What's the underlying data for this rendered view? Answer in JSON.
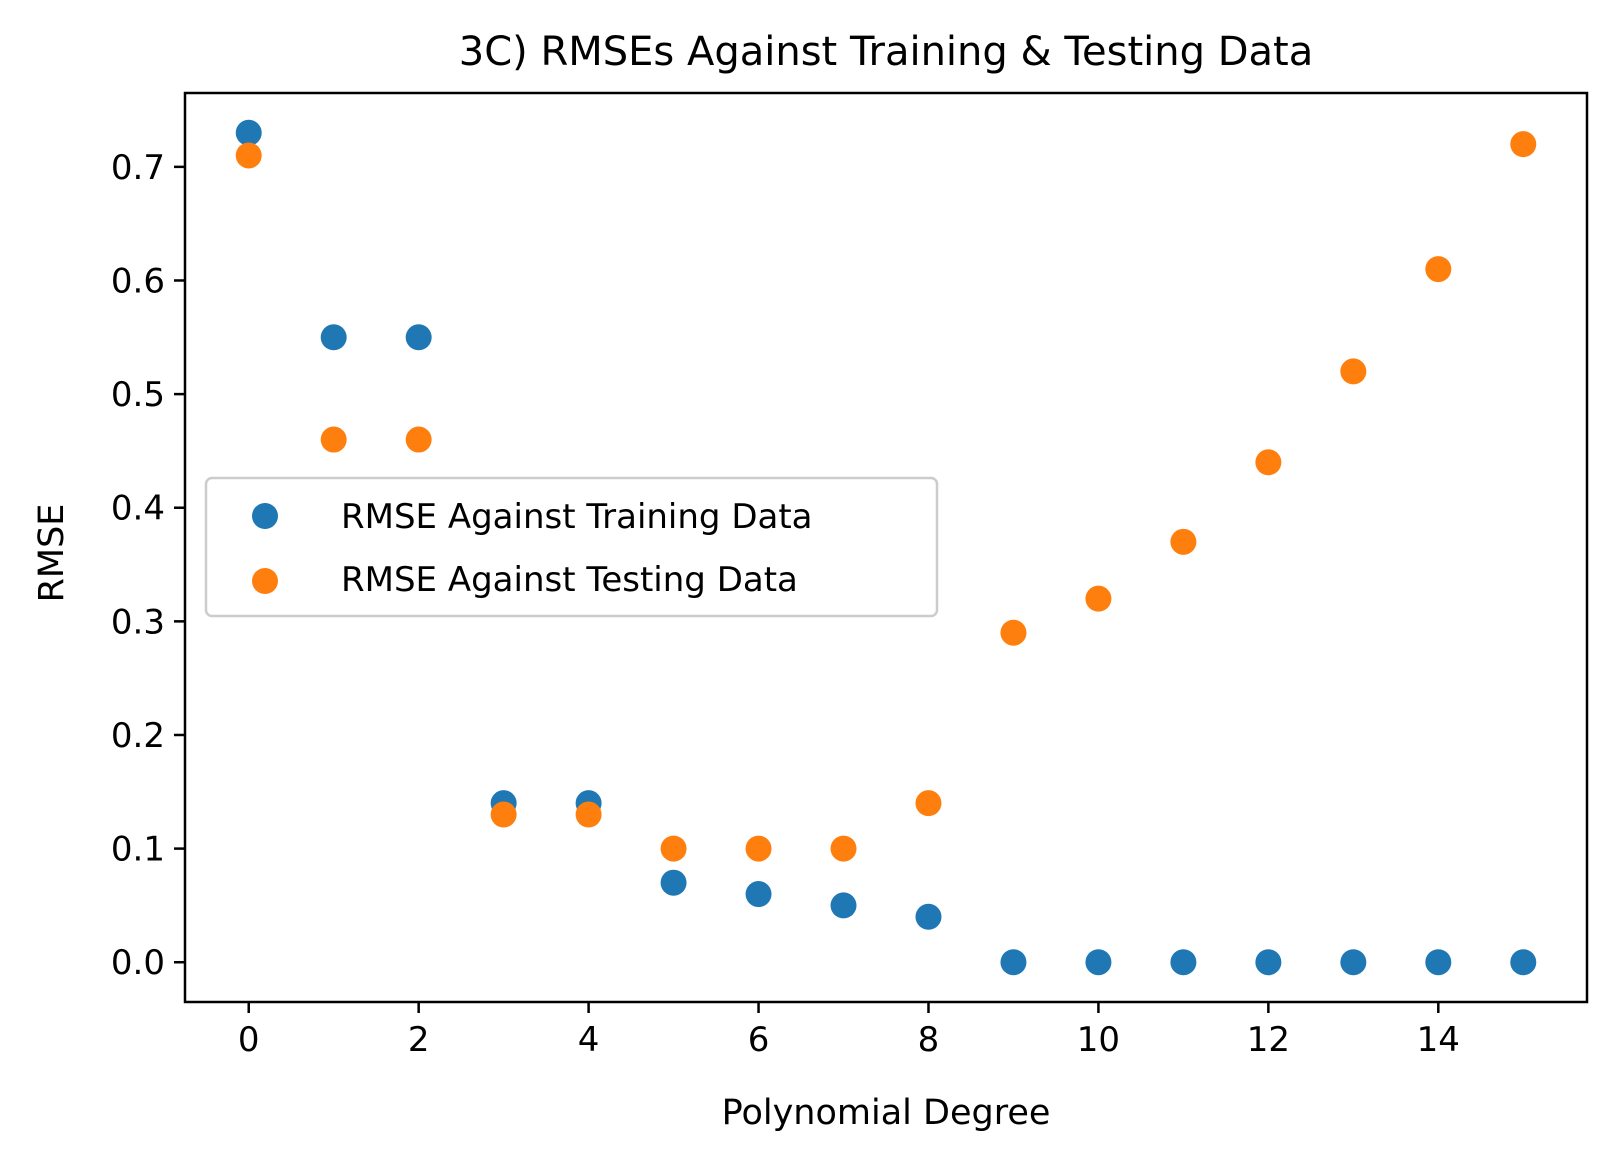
{
  "chart_data": {
    "type": "scatter",
    "title": "3C) RMSEs Against Training & Testing Data",
    "xlabel": "Polynomial Degree",
    "ylabel": "RMSE",
    "xlim": [
      -0.75,
      15.75
    ],
    "ylim": [
      -0.035,
      0.765
    ],
    "xticks": [
      0,
      2,
      4,
      6,
      8,
      10,
      12,
      14
    ],
    "xtick_labels": [
      "0",
      "2",
      "4",
      "6",
      "8",
      "10",
      "12",
      "14"
    ],
    "yticks": [
      0.0,
      0.1,
      0.2,
      0.3,
      0.4,
      0.5,
      0.6,
      0.7
    ],
    "ytick_labels": [
      "0.0",
      "0.1",
      "0.2",
      "0.3",
      "0.4",
      "0.5",
      "0.6",
      "0.7"
    ],
    "grid": false,
    "legend_position": "center-left",
    "series": [
      {
        "name": "RMSE Against Training Data",
        "color": "#1f77b4",
        "x": [
          0,
          1,
          2,
          3,
          4,
          5,
          6,
          7,
          8,
          9,
          10,
          11,
          12,
          13,
          14,
          15
        ],
        "y": [
          0.73,
          0.55,
          0.55,
          0.14,
          0.14,
          0.07,
          0.06,
          0.05,
          0.04,
          0.0,
          0.0,
          0.0,
          0.0,
          0.0,
          0.0,
          0.0
        ]
      },
      {
        "name": "RMSE Against Testing Data",
        "color": "#ff7f0e",
        "x": [
          0,
          1,
          2,
          3,
          4,
          5,
          6,
          7,
          8,
          9,
          10,
          11,
          12,
          13,
          14,
          15
        ],
        "y": [
          0.71,
          0.46,
          0.46,
          0.13,
          0.13,
          0.1,
          0.1,
          0.1,
          0.14,
          0.29,
          0.32,
          0.37,
          0.44,
          0.52,
          0.61,
          0.72
        ]
      }
    ]
  }
}
